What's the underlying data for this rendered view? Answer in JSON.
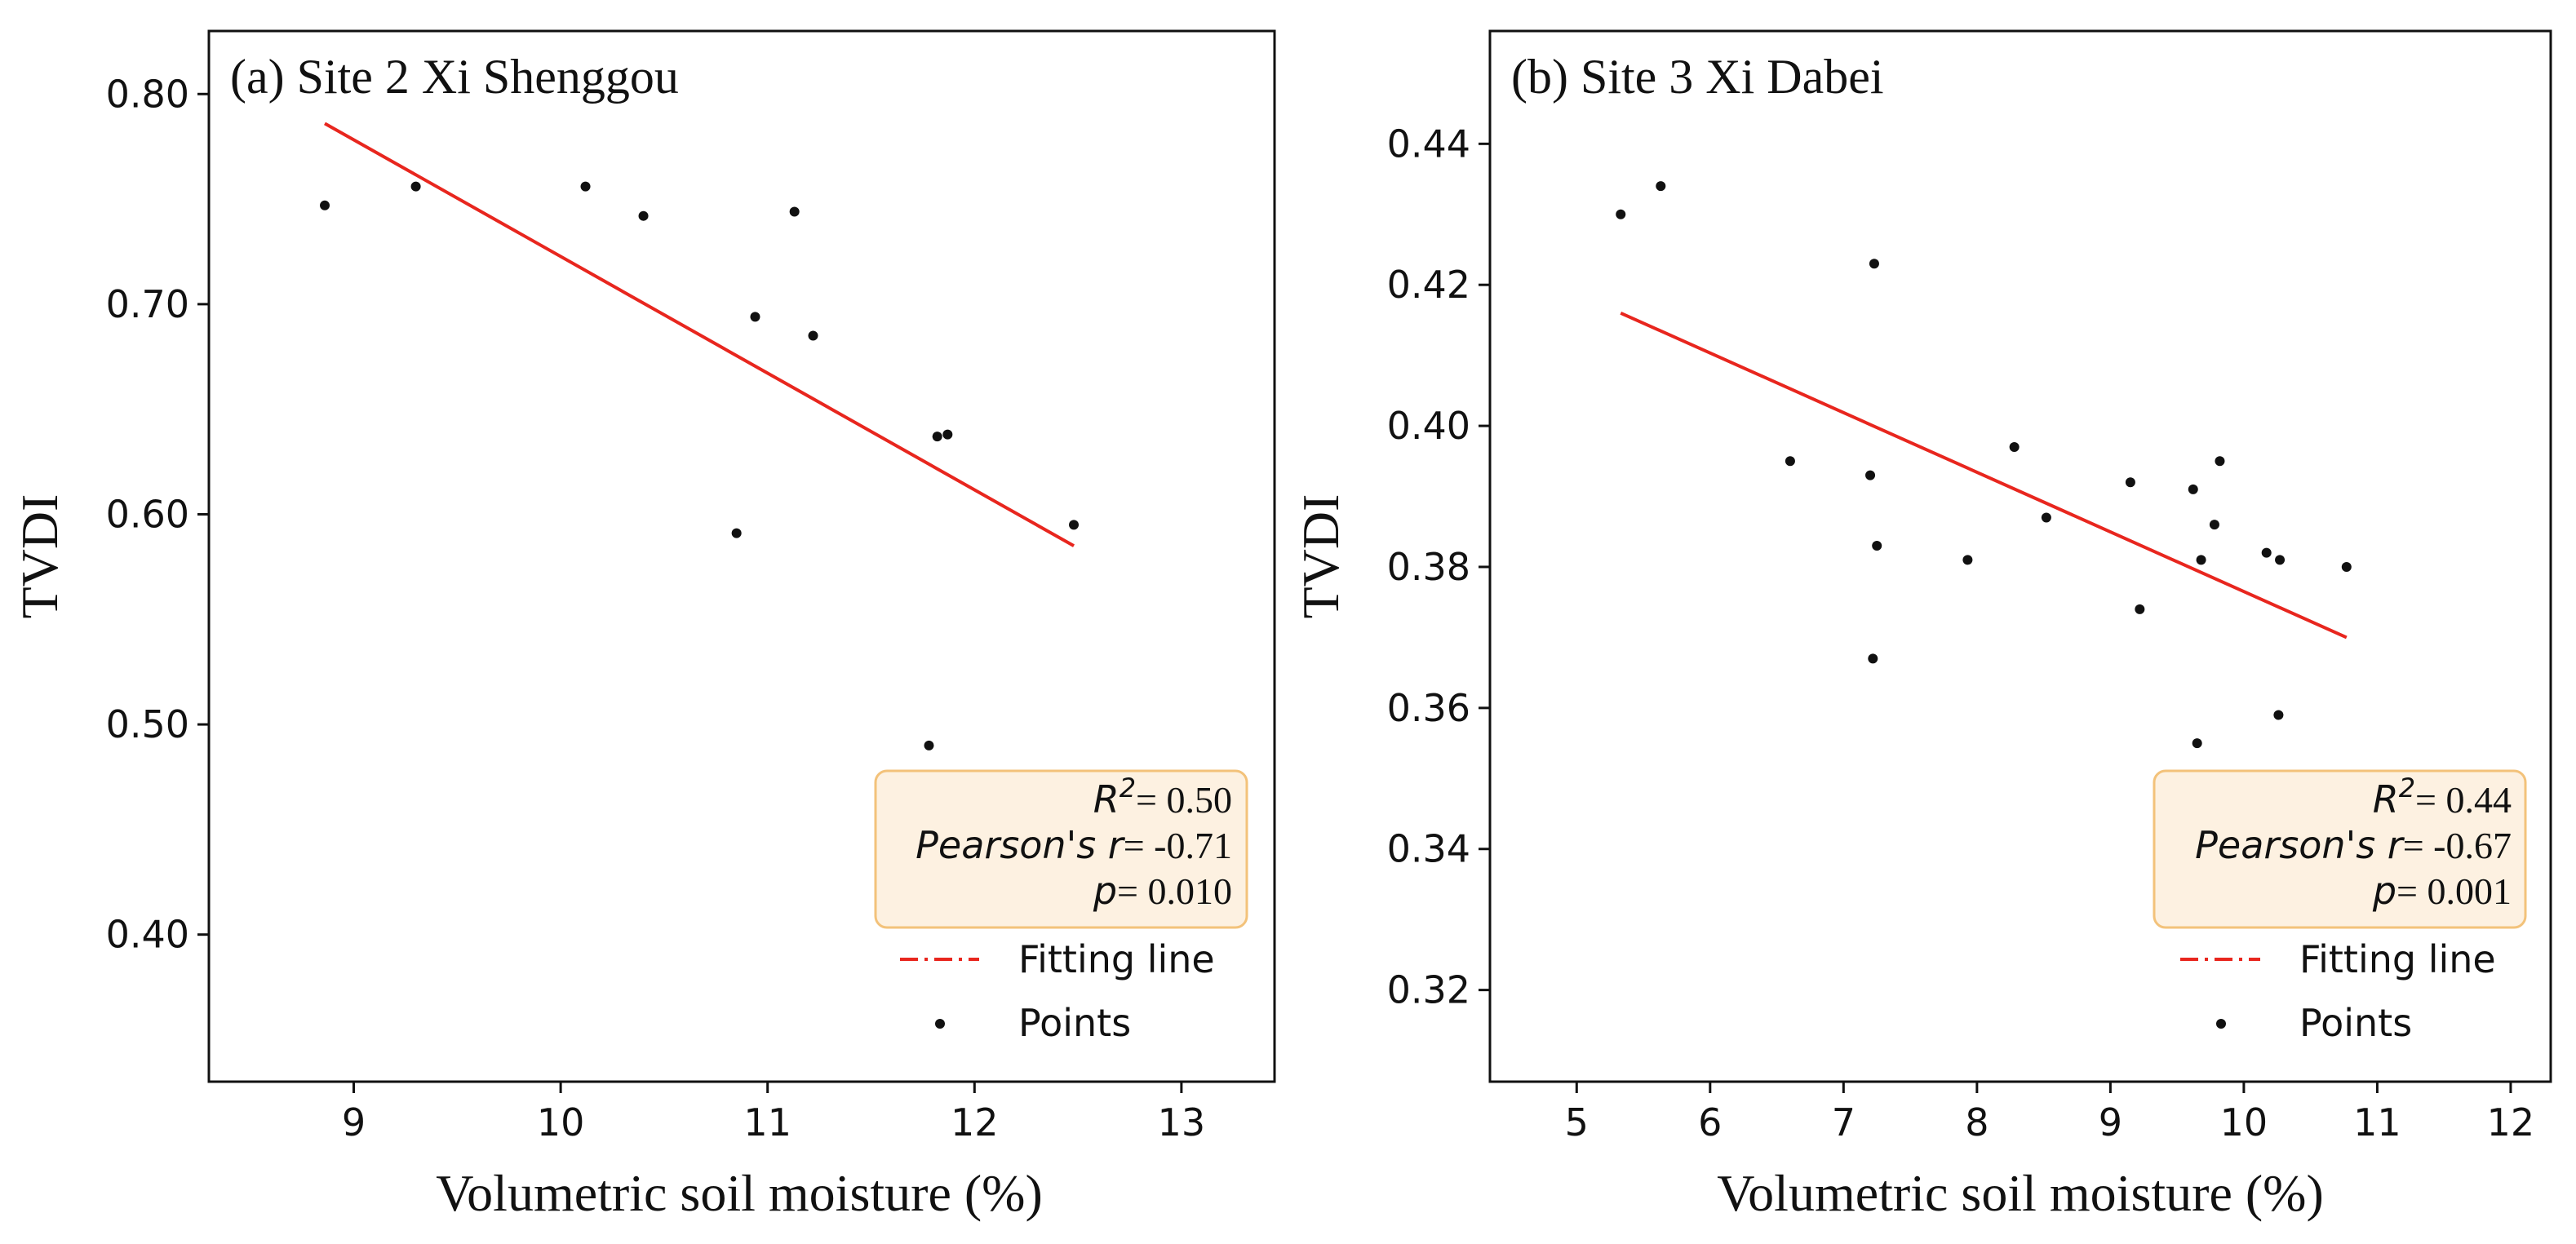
{
  "chart_data": [
    {
      "type": "scatter",
      "title": "(a) Site 2 Xi Shenggou",
      "xlabel": "Volumetric soil moisture (%)",
      "ylabel": "TVDI",
      "xlim": [
        8.3,
        13.45
      ],
      "ylim": [
        0.33,
        0.83
      ],
      "xticks": [
        9,
        10,
        11,
        12,
        13
      ],
      "yticks": [
        0.4,
        0.5,
        0.6,
        0.7,
        0.8
      ],
      "ytick_labels": [
        "0.40",
        "0.50",
        "0.60",
        "0.70",
        "0.80"
      ],
      "points": {
        "name": "Points",
        "x": [
          8.86,
          9.3,
          10.12,
          10.4,
          10.85,
          10.94,
          11.13,
          11.22,
          11.78,
          11.82,
          11.87,
          12.48
        ],
        "y": [
          0.747,
          0.756,
          0.756,
          0.742,
          0.591,
          0.694,
          0.744,
          0.685,
          0.49,
          0.637,
          0.638,
          0.595
        ]
      },
      "fit": {
        "name": "Fitting line",
        "x": [
          8.86,
          12.48
        ],
        "y": [
          0.786,
          0.585
        ],
        "color": "#e8261e"
      },
      "stats": {
        "r2_label": "R",
        "r2_exp": "2",
        "r2": "= 0.50",
        "pearson_label": "Pearson's r",
        "pearson": "= -0.71",
        "p_label": "p",
        "p": "= 0.010"
      },
      "legend": [
        "Fitting line",
        "Points"
      ],
      "legend_position": "bottom-right"
    },
    {
      "type": "scatter",
      "title": "(b) Site 3 Xi Dabei",
      "xlabel": "Volumetric soil moisture (%)",
      "ylabel": "TVDI",
      "xlim": [
        4.35,
        12.3
      ],
      "ylim": [
        0.307,
        0.456
      ],
      "xticks": [
        5,
        6,
        7,
        8,
        9,
        10,
        11,
        12
      ],
      "yticks": [
        0.32,
        0.34,
        0.36,
        0.38,
        0.4,
        0.42,
        0.44
      ],
      "ytick_labels": [
        "0.32",
        "0.34",
        "0.36",
        "0.38",
        "0.40",
        "0.42",
        "0.44"
      ],
      "points": {
        "name": "Points",
        "x": [
          5.33,
          5.63,
          6.6,
          7.2,
          7.22,
          7.23,
          7.25,
          7.93,
          8.28,
          8.52,
          9.15,
          9.22,
          9.62,
          9.65,
          9.68,
          9.78,
          9.82,
          10.17,
          10.26,
          10.27,
          10.77
        ],
        "y": [
          0.43,
          0.434,
          0.395,
          0.393,
          0.367,
          0.423,
          0.383,
          0.381,
          0.397,
          0.387,
          0.392,
          0.374,
          0.391,
          0.355,
          0.381,
          0.386,
          0.395,
          0.382,
          0.359,
          0.381,
          0.38
        ]
      },
      "fit": {
        "name": "Fitting line",
        "x": [
          5.33,
          10.77
        ],
        "y": [
          0.416,
          0.37
        ],
        "color": "#e8261e"
      },
      "stats": {
        "r2_label": "R",
        "r2_exp": "2",
        "r2": "= 0.44",
        "pearson_label": "Pearson's r",
        "pearson": "= -0.67",
        "p_label": "p",
        "p": "= 0.001"
      },
      "legend": [
        "Fitting line",
        "Points"
      ],
      "legend_position": "bottom-right"
    }
  ]
}
